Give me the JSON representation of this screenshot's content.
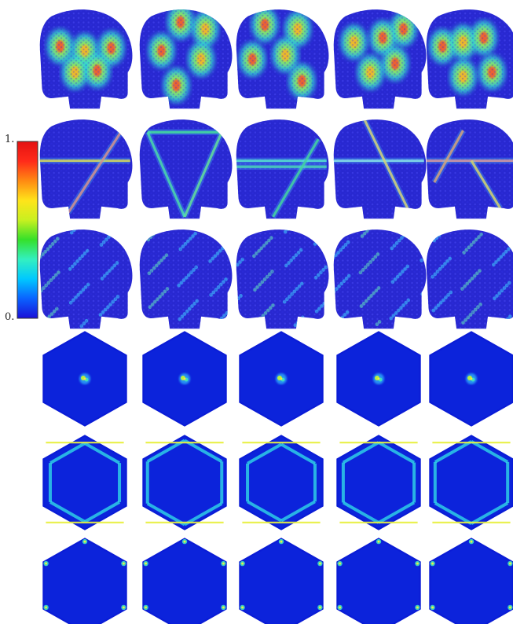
{
  "colorbar": {
    "max_label": "1.",
    "min_label": "0.",
    "stops": [
      "#1a10d8",
      "#0a62ff",
      "#00c8ff",
      "#33f0c0",
      "#35e02a",
      "#c8f020",
      "#ffe41a",
      "#ff8a12",
      "#ff2a1a",
      "#e41212"
    ]
  },
  "colors": {
    "lattice_base": "#2a2ad8",
    "bz_background": "#0a1cd6",
    "highlight": "#ff3a2a"
  },
  "grid": {
    "columns": 5,
    "rows": [
      {
        "id": "density-flake",
        "kind": "flake",
        "pattern": "lobes"
      },
      {
        "id": "edge-state-flake",
        "kind": "flake",
        "pattern": "lines"
      },
      {
        "id": "bulk-state-flake",
        "kind": "flake",
        "pattern": "speckle"
      },
      {
        "id": "bz-center",
        "kind": "hexagon",
        "pattern": "center-spot"
      },
      {
        "id": "bz-ring",
        "kind": "hexagon",
        "pattern": "edges"
      },
      {
        "id": "bz-corners",
        "kind": "hexagon",
        "pattern": "corners"
      }
    ]
  }
}
